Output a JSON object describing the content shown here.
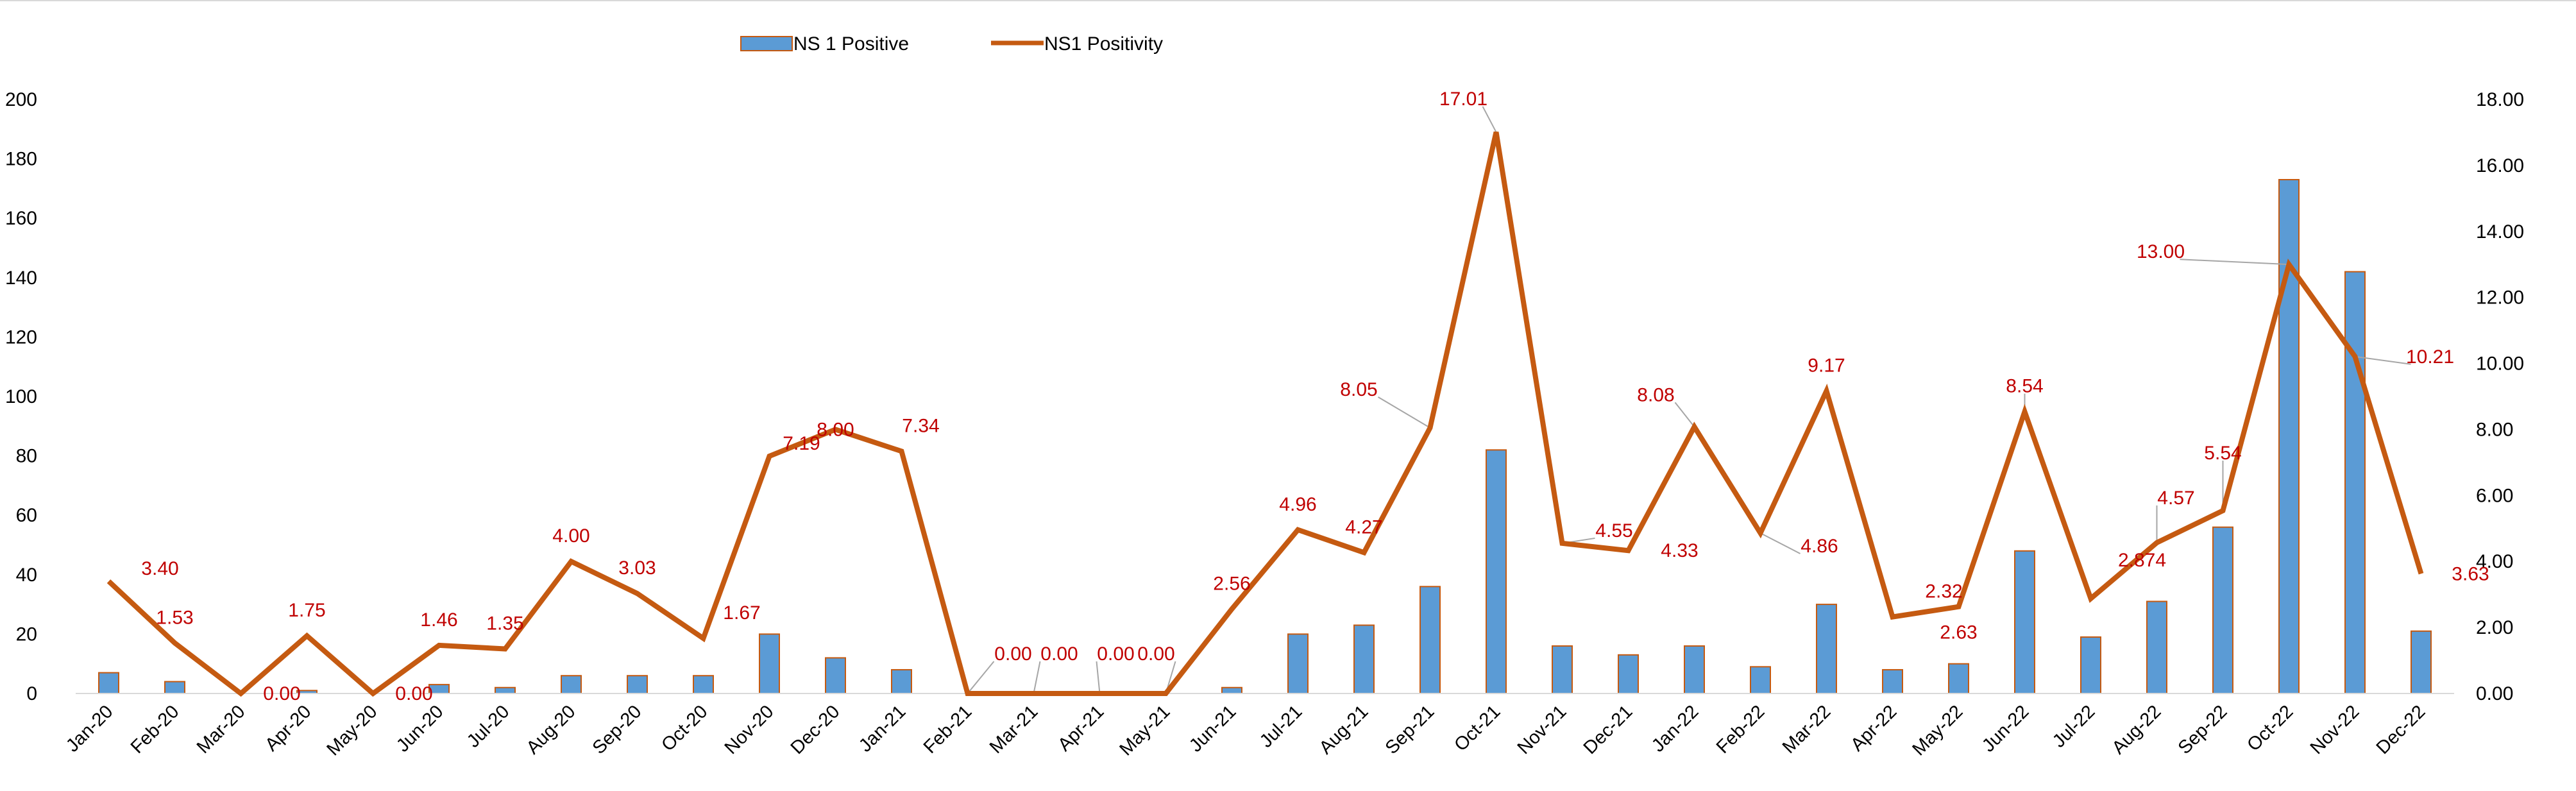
{
  "chart_data": {
    "type": "bar+line",
    "title": "",
    "categories": [
      "Jan-20",
      "Feb-20",
      "Mar-20",
      "Apr-20",
      "May-20",
      "Jun-20",
      "Jul-20",
      "Aug-20",
      "Sep-20",
      "Oct-20",
      "Nov-20",
      "Dec-20",
      "Jan-21",
      "Feb-21",
      "Mar-21",
      "Apr-21",
      "May-21",
      "Jun-21",
      "Jul-21",
      "Aug-21",
      "Sep-21",
      "Oct-21",
      "Nov-21",
      "Dec-21",
      "Jan-22",
      "Feb-22",
      "Mar-22",
      "Apr-22",
      "May-22",
      "Jun-22",
      "Jul-22",
      "Aug-22",
      "Sep-22",
      "Oct-22",
      "Nov-22",
      "Dec-22"
    ],
    "series": [
      {
        "name": "NS 1 Positive",
        "type": "bar",
        "axis": "left",
        "color": "#5b9bd5",
        "border_color": "#c55a11",
        "values": [
          7,
          4,
          0,
          1,
          0,
          3,
          2,
          6,
          6,
          6,
          20,
          12,
          8,
          0,
          0,
          0,
          0,
          2,
          20,
          23,
          36,
          82,
          16,
          13,
          16,
          9,
          30,
          8,
          10,
          48,
          19,
          31,
          56,
          173,
          142,
          21
        ]
      },
      {
        "name": "NS1 Positivity",
        "type": "line",
        "axis": "right",
        "color": "#c55a11",
        "values": [
          3.4,
          1.53,
          0.0,
          1.75,
          0.0,
          1.46,
          1.35,
          4.0,
          3.03,
          1.67,
          7.19,
          8.0,
          7.34,
          0.0,
          0.0,
          0.0,
          0.0,
          2.56,
          4.96,
          4.27,
          8.05,
          17.01,
          4.55,
          4.33,
          8.08,
          4.86,
          9.17,
          2.32,
          2.63,
          8.54,
          2.874,
          4.57,
          5.54,
          13.0,
          10.21,
          3.63
        ],
        "data_labels": [
          "3.40",
          "1.53",
          "0.00",
          "1.75",
          "0.00",
          "1.46",
          "1.35",
          "4.00",
          "3.03",
          "1.67",
          "7.19",
          "8.00",
          "7.34",
          "0.00",
          "0.00",
          "0.00",
          "0.00",
          "2.56",
          "4.96",
          "4.27",
          "8.05",
          "17.01",
          "4.55",
          "4.33",
          "8.08",
          "4.86",
          "9.17",
          "2.32",
          "2.63",
          "8.54",
          "2.874",
          "4.57",
          "5.54",
          "13.00",
          "10.21",
          "3.63"
        ],
        "label_color": "#c00000"
      }
    ],
    "y_left": {
      "min": 0,
      "max": 200,
      "step": 20,
      "ticks": [
        "0",
        "20",
        "40",
        "60",
        "80",
        "100",
        "120",
        "140",
        "160",
        "180",
        "200"
      ]
    },
    "y_right": {
      "min": 0,
      "max": 18,
      "step": 2,
      "ticks": [
        "0.00",
        "2.00",
        "4.00",
        "6.00",
        "8.00",
        "10.00",
        "12.00",
        "14.00",
        "16.00",
        "18.00"
      ]
    },
    "xlabel": "",
    "ylabel": "",
    "grid": false,
    "legend": {
      "position": "top-center",
      "entries": [
        "NS 1 Positive",
        "NS1 Positivity"
      ]
    }
  }
}
